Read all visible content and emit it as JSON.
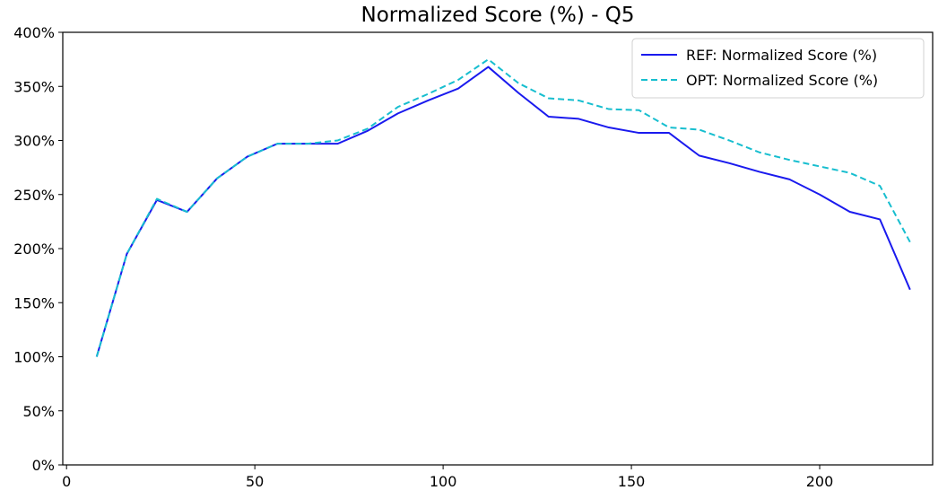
{
  "chart_data": {
    "type": "line",
    "title": "Normalized Score (%) - Q5",
    "xlabel": "",
    "ylabel": "",
    "xlim": [
      -1,
      230
    ],
    "ylim": [
      0,
      400
    ],
    "x_ticks": [
      0,
      50,
      100,
      150,
      200
    ],
    "x_tick_labels": [
      "0",
      "50",
      "100",
      "150",
      "200"
    ],
    "y_ticks": [
      0,
      50,
      100,
      150,
      200,
      250,
      300,
      350,
      400
    ],
    "y_tick_labels": [
      "0%",
      "50%",
      "100%",
      "150%",
      "200%",
      "250%",
      "300%",
      "350%",
      "400%"
    ],
    "grid": false,
    "legend_position": "top-right",
    "x": [
      8,
      16,
      24,
      32,
      40,
      48,
      56,
      64,
      72,
      80,
      88,
      96,
      104,
      112,
      120,
      128,
      136,
      144,
      152,
      160,
      168,
      176,
      184,
      192,
      200,
      208,
      216,
      224
    ],
    "series": [
      {
        "name": "REF: Normalized Score (%)",
        "color": "#1a1aee",
        "style": "solid",
        "values": [
          100,
          195,
          245,
          234,
          265,
          285,
          297,
          297,
          297,
          309,
          325,
          337,
          348,
          368,
          344,
          322,
          320,
          312,
          307,
          307,
          286,
          279,
          271,
          264,
          250,
          234,
          227,
          162
        ]
      },
      {
        "name": "OPT: Normalized Score (%)",
        "color": "#17becf",
        "style": "dashed",
        "values": [
          100,
          195,
          246,
          234,
          265,
          285,
          297,
          297,
          300,
          311,
          331,
          343,
          356,
          375,
          353,
          339,
          337,
          329,
          328,
          312,
          310,
          300,
          289,
          282,
          276,
          270,
          258,
          206
        ]
      }
    ]
  }
}
